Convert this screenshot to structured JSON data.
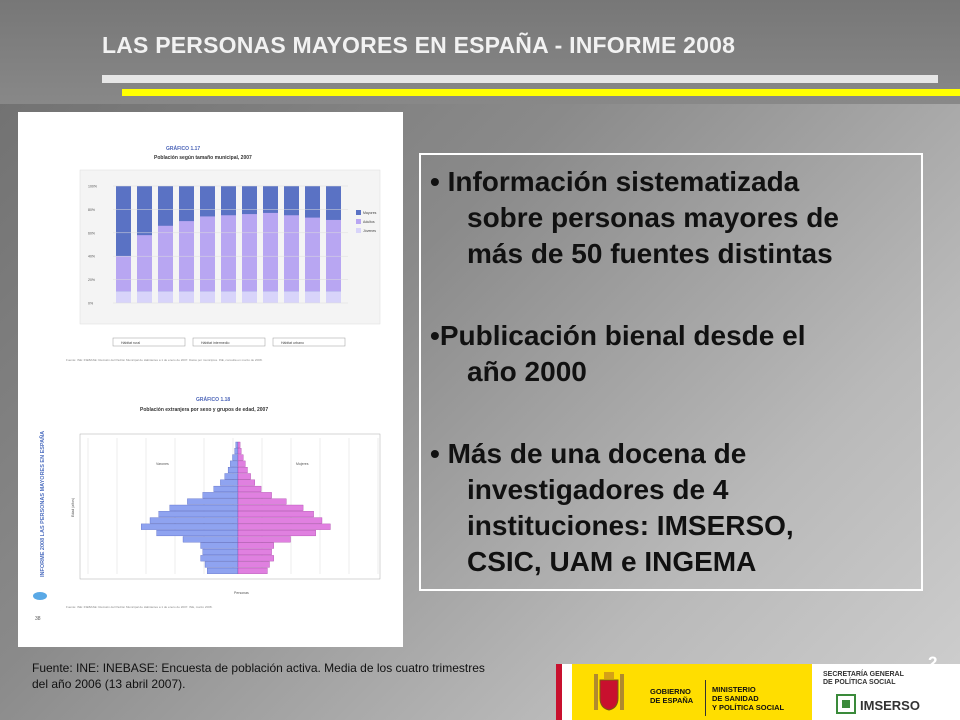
{
  "header": {
    "title": "LAS PERSONAS MAYORES EN ESPAÑA - INFORME 2008"
  },
  "colors": {
    "accent_yellow": "#ffff00",
    "logo_yellow": "#ffde00",
    "bar_lilac": "#b8a6f2",
    "bar_navy": "#5a72c4",
    "pyr_blue": "#8fa3f0",
    "pyr_magenta": "#e080e0"
  },
  "document": {
    "chart1": {
      "label": "GRÁFICO 1.17",
      "title": "Población según tamaño municipal, 2007",
      "legend": [
        "Mayores",
        "Adultos",
        "Jóvenes"
      ],
      "y_ticks": [
        "100%",
        "80%",
        "60%",
        "40%",
        "20%",
        "0%"
      ],
      "groups": [
        "Hábitat rural",
        "Hábitat intermedio",
        "Hábitat urbano"
      ],
      "source": "Fuente: INE: INEBASE: Revisión del Padrón Municipal de Habitantes a 1 de enero de 2007. Datos por municipios. INE, consulta en marzo de 2008."
    },
    "chart2": {
      "label": "GRÁFICO 1.18",
      "title": "Población extranjera por sexo y grupos de edad, 2007",
      "left_label": "Varones",
      "right_label": "Mujeres",
      "x_label": "Personas",
      "y_label": "Edad (años)",
      "source": "Fuente: INE: INEBASE: Revisión del Padrón Municipal de Habitantes a 1 de enero de 2007. INE, marzo 2008."
    },
    "spine_text": "INFORME 2008 LAS PERSONAS MAYORES EN ESPAÑA",
    "page_number": "38"
  },
  "bullets": [
    {
      "marker": "•",
      "lines": [
        "Información sistematizada",
        "sobre personas mayores de",
        "más de 50 fuentes distintas"
      ]
    },
    {
      "marker": "•",
      "lines": [
        "Publicación bienal desde el",
        "año 2000"
      ]
    },
    {
      "marker": "•",
      "lines": [
        "Más de una docena de",
        "investigadores de 4",
        "instituciones: IMSERSO,",
        "CSIC, UAM e INGEMA"
      ]
    }
  ],
  "footer": {
    "source_line1": "Fuente: INE: INEBASE: Encuesta de población activa. Media de los cuatro trimestres",
    "source_line2": "del año 2006 (13 abril 2007).",
    "page_number": "2"
  },
  "logos": {
    "gov_label_1": "GOBIERNO",
    "gov_label_2": "DE ESPAÑA",
    "ministry_1": "MINISTERIO",
    "ministry_2": "DE SANIDAD",
    "ministry_3": "Y POLÍTICA SOCIAL",
    "secretaria_1": "SECRETARÍA GENERAL",
    "secretaria_2": "DE POLÍTICA SOCIAL",
    "imserso": "IMSERSO"
  }
}
